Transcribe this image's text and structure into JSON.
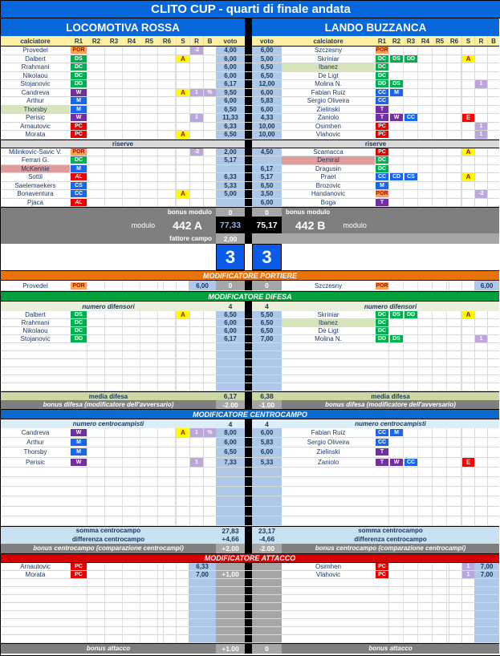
{
  "title": "CLITO CUP - quarti di finale andata",
  "teams": {
    "home": "LOCOMOTIVA ROSSA",
    "away": "LANDO BUZZANCA"
  },
  "header": {
    "player": "calciatore",
    "slots": [
      "R1",
      "R2",
      "R3",
      "R4",
      "R5",
      "R6"
    ],
    "s": "S",
    "r": "R",
    "b": "B",
    "voto": "voto"
  },
  "labels": {
    "reserves": "riserve",
    "bonus_modulo": "bonus modulo",
    "modulo": "modulo",
    "fattore_campo": "fattore campo"
  },
  "lineup": {
    "home": [
      {
        "name": "Provedel",
        "roles": [
          "POR"
        ],
        "r": "-2",
        "voto": "4,00"
      },
      {
        "name": "Dalbert",
        "roles": [
          "DS"
        ],
        "s": "A",
        "voto": "6,00"
      },
      {
        "name": "Rrahmani",
        "roles": [
          "DC"
        ],
        "voto": "6,00"
      },
      {
        "name": "Nikolaou",
        "roles": [
          "DC"
        ],
        "voto": "6,00"
      },
      {
        "name": "Stojanovic",
        "roles": [
          "DD"
        ],
        "voto": "6,17"
      },
      {
        "name": "Candreva",
        "roles": [
          "W"
        ],
        "s": "A",
        "r": "1",
        "b": "%",
        "voto": "9,50"
      },
      {
        "name": "Arthur",
        "roles": [
          "M"
        ],
        "voto": "6,00"
      },
      {
        "name": "Thorsby",
        "roles": [
          "M"
        ],
        "hl": "green",
        "voto": "6,50"
      },
      {
        "name": "Perisic",
        "roles": [
          "W"
        ],
        "r": "1",
        "voto": "11,33"
      },
      {
        "name": "Arnautovic",
        "roles": [
          "PC"
        ],
        "voto": "6,33"
      },
      {
        "name": "Morata",
        "roles": [
          "PC"
        ],
        "s": "A",
        "voto": "6,50"
      }
    ],
    "away": [
      {
        "name": "Szczesny",
        "roles": [
          "POR"
        ],
        "voto": "6,00"
      },
      {
        "name": "Skriniar",
        "roles": [
          "DC",
          "DS",
          "DD"
        ],
        "s": "A",
        "voto": "5,00"
      },
      {
        "name": "Ibanez",
        "roles": [
          "DC"
        ],
        "hl": "green",
        "voto": "6,50"
      },
      {
        "name": "De Ligt",
        "roles": [
          "DC"
        ],
        "voto": "6,50"
      },
      {
        "name": "Molina N.",
        "roles": [
          "DD",
          "DS"
        ],
        "r": "1",
        "voto": "12,00"
      },
      {
        "name": "Fabian Ruiz",
        "roles": [
          "CC",
          "M"
        ],
        "voto": "6,00"
      },
      {
        "name": "Sergio Oliveira",
        "roles": [
          "CC"
        ],
        "voto": "5,83"
      },
      {
        "name": "Zielinski",
        "roles": [
          "T"
        ],
        "voto": "6,00"
      },
      {
        "name": "Zaniolo",
        "roles": [
          "T",
          "W",
          "CC"
        ],
        "s": "E",
        "voto": "4,33"
      },
      {
        "name": "Osimhen",
        "roles": [
          "PC"
        ],
        "r": "1",
        "voto": "10,00"
      },
      {
        "name": "Vlahovic",
        "roles": [
          "PC"
        ],
        "r": "1",
        "voto": "10,00"
      }
    ]
  },
  "reserves": {
    "home": [
      {
        "name": "Milinkovic-Savic V.",
        "roles": [
          "POR"
        ],
        "r": "-2",
        "voto": "2,00"
      },
      {
        "name": "Ferrari G.",
        "roles": [
          "DC"
        ],
        "voto": "5,17"
      },
      {
        "name": "McKennie",
        "roles": [
          "M"
        ],
        "hl": "pink",
        "voto": ""
      },
      {
        "name": "Sottil",
        "roles": [
          "AL"
        ],
        "voto": "6,33"
      },
      {
        "name": "Saelemaekers",
        "roles": [
          "CS"
        ],
        "voto": "5,33"
      },
      {
        "name": "Bonaventura",
        "roles": [
          "CC"
        ],
        "s": "A",
        "voto": "5,00"
      },
      {
        "name": "Pjaca",
        "roles": [
          "AL"
        ],
        "voto": ""
      }
    ],
    "away": [
      {
        "name": "Scamacca",
        "roles": [
          "PC"
        ],
        "s": "A",
        "voto": "4,50"
      },
      {
        "name": "Demiral",
        "roles": [
          "DC"
        ],
        "hl": "pink",
        "voto": ""
      },
      {
        "name": "Dragusin",
        "roles": [
          "DC"
        ],
        "voto": "6,17"
      },
      {
        "name": "Praet",
        "roles": [
          "CC",
          "CD",
          "CS"
        ],
        "s": "A",
        "voto": "5,17"
      },
      {
        "name": "Brozovic",
        "roles": [
          "M"
        ],
        "voto": "6,50"
      },
      {
        "name": "Handanovic",
        "roles": [
          "POR"
        ],
        "r": "-2",
        "voto": "3,50"
      },
      {
        "name": "Boga",
        "roles": [
          "T"
        ],
        "voto": "6,00"
      }
    ]
  },
  "summary": {
    "bonus_modulo": {
      "home": "0",
      "away": "0"
    },
    "modulo": {
      "home": "442 A",
      "away": "442 B"
    },
    "totale": {
      "home": "77,33",
      "away": "75,17"
    },
    "fattore_campo": "2,00",
    "score": {
      "home": "3",
      "away": "3"
    }
  },
  "modifier_portiere": {
    "title": "MODIFICATORE PORTIERE",
    "home": {
      "name": "Provedel",
      "roles": [
        "POR"
      ],
      "voto": "6,00"
    },
    "away": {
      "name": "Szczesny",
      "roles": [
        "POR"
      ],
      "voto": "6,00"
    },
    "bonus": {
      "home": "0",
      "away": "0"
    }
  },
  "modifier_difesa": {
    "title": "MODIFICATORE DIFESA",
    "count_label": "numero difensori",
    "count": {
      "home": "4",
      "away": "4"
    },
    "rows": {
      "home": [
        {
          "name": "Dalbert",
          "roles": [
            "DS"
          ],
          "s": "A",
          "voto": "6,50"
        },
        {
          "name": "Rrahmani",
          "roles": [
            "DC"
          ],
          "voto": "6,00"
        },
        {
          "name": "Nikolaou",
          "roles": [
            "DC"
          ],
          "voto": "6,00"
        },
        {
          "name": "Stojanovic",
          "roles": [
            "DD"
          ],
          "voto": "6,17"
        }
      ],
      "away": [
        {
          "name": "Skriniar",
          "roles": [
            "DC",
            "DS",
            "DD"
          ],
          "s": "A",
          "voto": "5,50"
        },
        {
          "name": "Ibanez",
          "roles": [
            "DC"
          ],
          "hl": "green",
          "voto": "6,50"
        },
        {
          "name": "De Ligt",
          "roles": [
            "DC"
          ],
          "voto": "6,50"
        },
        {
          "name": "Molina N.",
          "roles": [
            "DD",
            "DS"
          ],
          "r": "1",
          "voto": "7,00"
        }
      ]
    },
    "media_label": "media difesa",
    "media": {
      "home": "6,17",
      "away": "6,38"
    },
    "bonus_label": "bonus difesa (modificatore dell'avversario)",
    "bonus": {
      "home": "-2.00",
      "away": "-1.00"
    }
  },
  "modifier_centrocampo": {
    "title": "MODIFICATORE CENTROCAMPO",
    "count_label": "numero centrocampisti",
    "count": {
      "home": "4",
      "away": "4"
    },
    "rows": {
      "home": [
        {
          "name": "Candreva",
          "roles": [
            "W"
          ],
          "s": "A",
          "r": "1",
          "b": "%",
          "voto": "8,00"
        },
        {
          "name": "Arthur",
          "roles": [
            "M"
          ],
          "voto": "6,00"
        },
        {
          "name": "Thorsby",
          "roles": [
            "M"
          ],
          "voto": "6,50"
        },
        {
          "name": "Perisic",
          "roles": [
            "W"
          ],
          "r": "1",
          "voto": "7,33"
        }
      ],
      "away": [
        {
          "name": "Fabian Ruiz",
          "roles": [
            "CC",
            "M"
          ],
          "voto": "6,00"
        },
        {
          "name": "Sergio Oliveira",
          "roles": [
            "CC"
          ],
          "voto": "5,83"
        },
        {
          "name": "Zielinski",
          "roles": [
            "T"
          ],
          "voto": "6,00"
        },
        {
          "name": "Zaniolo",
          "roles": [
            "T",
            "W",
            "CC"
          ],
          "s": "E",
          "voto": "5,33"
        }
      ]
    },
    "somma_label": "somma centrocampo",
    "somma": {
      "home": "27,83",
      "away": "23,17"
    },
    "differenza_label": "differenza centrocampo",
    "differenza": {
      "home": "+4,66",
      "away": "-4,66"
    },
    "bonus_label": "bonus centrocampo (comparazione centrocampi)",
    "bonus": {
      "home": "+2.00",
      "away": "-2.00"
    }
  },
  "modifier_attacco": {
    "title": "MODIFICATORE ATTACCO",
    "rows": {
      "home": [
        {
          "name": "Arnautovic",
          "roles": [
            "PC"
          ],
          "voto": "6,33"
        },
        {
          "name": "Morata",
          "roles": [
            "PC"
          ],
          "voto": "7,00",
          "bonus": "+1,00"
        }
      ],
      "away": [
        {
          "name": "Osimhen",
          "roles": [
            "PC"
          ],
          "r": "1",
          "voto": "7,00"
        },
        {
          "name": "Vlahovic",
          "roles": [
            "PC"
          ],
          "r": "1",
          "voto": "7,00"
        }
      ]
    },
    "bonus_label": "bonus attacco",
    "bonus": {
      "home": "+1.00",
      "away": "0"
    }
  },
  "colors": {
    "header_blue": "#0667dd",
    "header_yellow": "#fdf0a3",
    "bar_orange": "#e8730b",
    "bar_green": "#00a03c",
    "bar_blue": "#0b6ad0",
    "bar_red": "#d50000",
    "voto_blue": "#b0c8e8",
    "score_blue": "#0a5ce8",
    "gray_bar": "#7f7f7f",
    "gray_cell": "#a6a6a6",
    "role_por": "#f7a454",
    "role_def": "#00af50",
    "role_mid": "#1666f0",
    "role_wing": "#7030a0",
    "role_att": "#e60000",
    "card_yellow": "#ffff00",
    "card_red": "#ff0000",
    "note_purple": "#b9a8d9",
    "highlight_green": "#d7e4bc",
    "highlight_pink": "#de9d9b",
    "total_home_text": "#8db4e2",
    "pale_green": "#e9efd9",
    "pale_green_dark": "#ccd9a5",
    "pale_blue": "#ddeef8",
    "pale_blue_dark": "#c9e2f2"
  }
}
